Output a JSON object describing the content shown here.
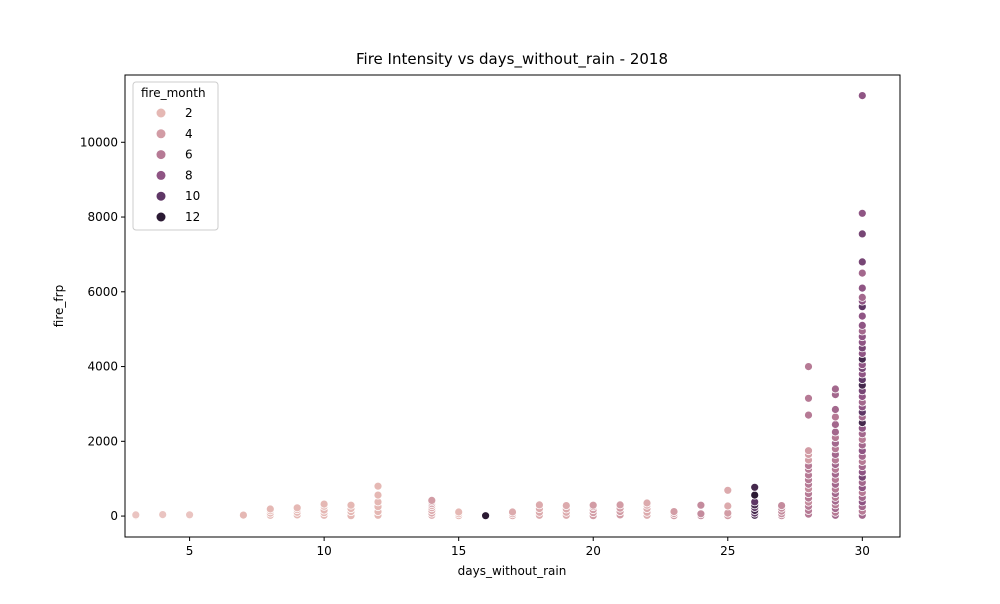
{
  "chart_data": {
    "type": "scatter",
    "title": "Fire Intensity vs days_without_rain - 2018",
    "xlabel": "days_without_rain",
    "ylabel": "fire_frp",
    "xlim": [
      2.6,
      31.4
    ],
    "ylim": [
      -560,
      11800
    ],
    "xticks": [
      5,
      10,
      15,
      20,
      25,
      30
    ],
    "yticks": [
      0,
      2000,
      4000,
      6000,
      8000,
      10000
    ],
    "grid": false,
    "legend": {
      "title": "fire_month",
      "placement": "top-left",
      "entries": [
        {
          "label": "2",
          "month": 2,
          "color": "#e5b8b4"
        },
        {
          "label": "4",
          "month": 4,
          "color": "#d29ca5"
        },
        {
          "label": "6",
          "month": 6,
          "color": "#b67a95"
        },
        {
          "label": "8",
          "month": 8,
          "color": "#8f5584"
        },
        {
          "label": "10",
          "month": 10,
          "color": "#5f3766"
        },
        {
          "label": "12",
          "month": 12,
          "color": "#2b1a33"
        }
      ]
    },
    "points": [
      {
        "x": 3,
        "y": 10,
        "month": 1
      },
      {
        "x": 3,
        "y": 30,
        "month": 1
      },
      {
        "x": 4,
        "y": 20,
        "month": 1
      },
      {
        "x": 4,
        "y": 40,
        "month": 1
      },
      {
        "x": 5,
        "y": 15,
        "month": 1
      },
      {
        "x": 5,
        "y": 35,
        "month": 1
      },
      {
        "x": 7,
        "y": 10,
        "month": 2
      },
      {
        "x": 7,
        "y": 25,
        "month": 2
      },
      {
        "x": 8,
        "y": 20,
        "month": 2
      },
      {
        "x": 8,
        "y": 80,
        "month": 2
      },
      {
        "x": 8,
        "y": 140,
        "month": 2
      },
      {
        "x": 8,
        "y": 190,
        "month": 2
      },
      {
        "x": 9,
        "y": 30,
        "month": 2
      },
      {
        "x": 9,
        "y": 100,
        "month": 2
      },
      {
        "x": 9,
        "y": 170,
        "month": 2
      },
      {
        "x": 9,
        "y": 220,
        "month": 2
      },
      {
        "x": 10,
        "y": 20,
        "month": 2
      },
      {
        "x": 10,
        "y": 90,
        "month": 2
      },
      {
        "x": 10,
        "y": 160,
        "month": 2
      },
      {
        "x": 10,
        "y": 260,
        "month": 2
      },
      {
        "x": 10,
        "y": 320,
        "month": 2
      },
      {
        "x": 11,
        "y": 10,
        "month": 2
      },
      {
        "x": 11,
        "y": 120,
        "month": 2
      },
      {
        "x": 11,
        "y": 200,
        "month": 2
      },
      {
        "x": 11,
        "y": 290,
        "month": 2
      },
      {
        "x": 12,
        "y": 20,
        "month": 2
      },
      {
        "x": 12,
        "y": 120,
        "month": 2
      },
      {
        "x": 12,
        "y": 250,
        "month": 2
      },
      {
        "x": 12,
        "y": 380,
        "month": 2
      },
      {
        "x": 12,
        "y": 560,
        "month": 2
      },
      {
        "x": 12,
        "y": 800,
        "month": 2
      },
      {
        "x": 14,
        "y": 20,
        "month": 3
      },
      {
        "x": 14,
        "y": 80,
        "month": 3
      },
      {
        "x": 14,
        "y": 150,
        "month": 3
      },
      {
        "x": 14,
        "y": 220,
        "month": 3
      },
      {
        "x": 14,
        "y": 280,
        "month": 3
      },
      {
        "x": 14,
        "y": 330,
        "month": 4
      },
      {
        "x": 14,
        "y": 380,
        "month": 4
      },
      {
        "x": 14,
        "y": 420,
        "month": 4
      },
      {
        "x": 15,
        "y": 10,
        "month": 2
      },
      {
        "x": 15,
        "y": 60,
        "month": 2
      },
      {
        "x": 15,
        "y": 110,
        "month": 2
      },
      {
        "x": 16,
        "y": 10,
        "month": 12
      },
      {
        "x": 17,
        "y": 10,
        "month": 3
      },
      {
        "x": 17,
        "y": 60,
        "month": 3
      },
      {
        "x": 17,
        "y": 110,
        "month": 3
      },
      {
        "x": 18,
        "y": 20,
        "month": 3
      },
      {
        "x": 18,
        "y": 100,
        "month": 3
      },
      {
        "x": 18,
        "y": 200,
        "month": 3
      },
      {
        "x": 18,
        "y": 300,
        "month": 3
      },
      {
        "x": 19,
        "y": 20,
        "month": 3
      },
      {
        "x": 19,
        "y": 100,
        "month": 3
      },
      {
        "x": 19,
        "y": 190,
        "month": 3
      },
      {
        "x": 19,
        "y": 280,
        "month": 3
      },
      {
        "x": 20,
        "y": 10,
        "month": 4
      },
      {
        "x": 20,
        "y": 90,
        "month": 4
      },
      {
        "x": 20,
        "y": 170,
        "month": 4
      },
      {
        "x": 20,
        "y": 250,
        "month": 4
      },
      {
        "x": 20,
        "y": 290,
        "month": 4
      },
      {
        "x": 21,
        "y": 30,
        "month": 4
      },
      {
        "x": 21,
        "y": 120,
        "month": 4
      },
      {
        "x": 21,
        "y": 210,
        "month": 4
      },
      {
        "x": 21,
        "y": 300,
        "month": 4
      },
      {
        "x": 22,
        "y": 20,
        "month": 3
      },
      {
        "x": 22,
        "y": 100,
        "month": 3
      },
      {
        "x": 22,
        "y": 200,
        "month": 3
      },
      {
        "x": 22,
        "y": 290,
        "month": 3
      },
      {
        "x": 22,
        "y": 350,
        "month": 3
      },
      {
        "x": 23,
        "y": 10,
        "month": 4
      },
      {
        "x": 23,
        "y": 70,
        "month": 4
      },
      {
        "x": 23,
        "y": 120,
        "month": 4
      },
      {
        "x": 24,
        "y": 10,
        "month": 5
      },
      {
        "x": 24,
        "y": 60,
        "month": 5
      },
      {
        "x": 24,
        "y": 290,
        "month": 5
      },
      {
        "x": 25,
        "y": 10,
        "month": 4
      },
      {
        "x": 25,
        "y": 80,
        "month": 4
      },
      {
        "x": 25,
        "y": 270,
        "month": 3
      },
      {
        "x": 25,
        "y": 690,
        "month": 3
      },
      {
        "x": 26,
        "y": 20,
        "month": 11
      },
      {
        "x": 26,
        "y": 80,
        "month": 10
      },
      {
        "x": 26,
        "y": 150,
        "month": 11
      },
      {
        "x": 26,
        "y": 230,
        "month": 10
      },
      {
        "x": 26,
        "y": 300,
        "month": 11
      },
      {
        "x": 26,
        "y": 380,
        "month": 10
      },
      {
        "x": 26,
        "y": 560,
        "month": 12
      },
      {
        "x": 26,
        "y": 770,
        "month": 11
      },
      {
        "x": 27,
        "y": 10,
        "month": 5
      },
      {
        "x": 27,
        "y": 60,
        "month": 5
      },
      {
        "x": 27,
        "y": 130,
        "month": 5
      },
      {
        "x": 27,
        "y": 210,
        "month": 5
      },
      {
        "x": 27,
        "y": 280,
        "month": 5
      },
      {
        "x": 28,
        "y": 50,
        "month": 6
      },
      {
        "x": 28,
        "y": 150,
        "month": 6
      },
      {
        "x": 28,
        "y": 260,
        "month": 6
      },
      {
        "x": 28,
        "y": 370,
        "month": 5
      },
      {
        "x": 28,
        "y": 480,
        "month": 6
      },
      {
        "x": 28,
        "y": 600,
        "month": 6
      },
      {
        "x": 28,
        "y": 730,
        "month": 5
      },
      {
        "x": 28,
        "y": 850,
        "month": 6
      },
      {
        "x": 28,
        "y": 970,
        "month": 6
      },
      {
        "x": 28,
        "y": 1100,
        "month": 6
      },
      {
        "x": 28,
        "y": 1250,
        "month": 6
      },
      {
        "x": 28,
        "y": 1350,
        "month": 6
      },
      {
        "x": 28,
        "y": 1500,
        "month": 4
      },
      {
        "x": 28,
        "y": 1650,
        "month": 4
      },
      {
        "x": 28,
        "y": 1750,
        "month": 4
      },
      {
        "x": 28,
        "y": 2700,
        "month": 6
      },
      {
        "x": 28,
        "y": 3150,
        "month": 6
      },
      {
        "x": 28,
        "y": 4000,
        "month": 6
      },
      {
        "x": 29,
        "y": 20,
        "month": 7
      },
      {
        "x": 29,
        "y": 100,
        "month": 6
      },
      {
        "x": 29,
        "y": 200,
        "month": 7
      },
      {
        "x": 29,
        "y": 300,
        "month": 6
      },
      {
        "x": 29,
        "y": 400,
        "month": 7
      },
      {
        "x": 29,
        "y": 500,
        "month": 6
      },
      {
        "x": 29,
        "y": 600,
        "month": 7
      },
      {
        "x": 29,
        "y": 720,
        "month": 6
      },
      {
        "x": 29,
        "y": 850,
        "month": 7
      },
      {
        "x": 29,
        "y": 980,
        "month": 6
      },
      {
        "x": 29,
        "y": 1120,
        "month": 7
      },
      {
        "x": 29,
        "y": 1250,
        "month": 6
      },
      {
        "x": 29,
        "y": 1380,
        "month": 7
      },
      {
        "x": 29,
        "y": 1500,
        "month": 6
      },
      {
        "x": 29,
        "y": 1650,
        "month": 7
      },
      {
        "x": 29,
        "y": 1800,
        "month": 6
      },
      {
        "x": 29,
        "y": 1950,
        "month": 7
      },
      {
        "x": 29,
        "y": 2100,
        "month": 6
      },
      {
        "x": 29,
        "y": 2250,
        "month": 7
      },
      {
        "x": 29,
        "y": 2450,
        "month": 7
      },
      {
        "x": 29,
        "y": 2650,
        "month": 6
      },
      {
        "x": 29,
        "y": 2850,
        "month": 7
      },
      {
        "x": 29,
        "y": 3250,
        "month": 7
      },
      {
        "x": 29,
        "y": 3400,
        "month": 7
      },
      {
        "x": 30,
        "y": 20,
        "month": 7
      },
      {
        "x": 30,
        "y": 130,
        "month": 6
      },
      {
        "x": 30,
        "y": 250,
        "month": 7
      },
      {
        "x": 30,
        "y": 380,
        "month": 8
      },
      {
        "x": 30,
        "y": 500,
        "month": 7
      },
      {
        "x": 30,
        "y": 630,
        "month": 6
      },
      {
        "x": 30,
        "y": 760,
        "month": 8
      },
      {
        "x": 30,
        "y": 900,
        "month": 7
      },
      {
        "x": 30,
        "y": 1040,
        "month": 9
      },
      {
        "x": 30,
        "y": 1180,
        "month": 8
      },
      {
        "x": 30,
        "y": 1320,
        "month": 7
      },
      {
        "x": 30,
        "y": 1460,
        "month": 6
      },
      {
        "x": 30,
        "y": 1600,
        "month": 7
      },
      {
        "x": 30,
        "y": 1750,
        "month": 8
      },
      {
        "x": 30,
        "y": 1900,
        "month": 7
      },
      {
        "x": 30,
        "y": 2050,
        "month": 6
      },
      {
        "x": 30,
        "y": 2200,
        "month": 7
      },
      {
        "x": 30,
        "y": 2350,
        "month": 8
      },
      {
        "x": 30,
        "y": 2500,
        "month": 11
      },
      {
        "x": 30,
        "y": 2650,
        "month": 7
      },
      {
        "x": 30,
        "y": 2780,
        "month": 10
      },
      {
        "x": 30,
        "y": 2920,
        "month": 8
      },
      {
        "x": 30,
        "y": 3050,
        "month": 7
      },
      {
        "x": 30,
        "y": 3200,
        "month": 8
      },
      {
        "x": 30,
        "y": 3350,
        "month": 9
      },
      {
        "x": 30,
        "y": 3500,
        "month": 11
      },
      {
        "x": 30,
        "y": 3650,
        "month": 10
      },
      {
        "x": 30,
        "y": 3800,
        "month": 8
      },
      {
        "x": 30,
        "y": 3950,
        "month": 9
      },
      {
        "x": 30,
        "y": 4050,
        "month": 8
      },
      {
        "x": 30,
        "y": 4200,
        "month": 11
      },
      {
        "x": 30,
        "y": 4350,
        "month": 8
      },
      {
        "x": 30,
        "y": 4500,
        "month": 9
      },
      {
        "x": 30,
        "y": 4650,
        "month": 8
      },
      {
        "x": 30,
        "y": 4800,
        "month": 8
      },
      {
        "x": 30,
        "y": 4950,
        "month": 7
      },
      {
        "x": 30,
        "y": 5100,
        "month": 8
      },
      {
        "x": 30,
        "y": 5350,
        "month": 8
      },
      {
        "x": 30,
        "y": 5600,
        "month": 10
      },
      {
        "x": 30,
        "y": 5750,
        "month": 8
      },
      {
        "x": 30,
        "y": 5850,
        "month": 7
      },
      {
        "x": 30,
        "y": 6100,
        "month": 8
      },
      {
        "x": 30,
        "y": 6500,
        "month": 7
      },
      {
        "x": 30,
        "y": 6800,
        "month": 9
      },
      {
        "x": 30,
        "y": 7550,
        "month": 9
      },
      {
        "x": 30,
        "y": 8100,
        "month": 8
      },
      {
        "x": 30,
        "y": 11250,
        "month": 8
      }
    ]
  }
}
